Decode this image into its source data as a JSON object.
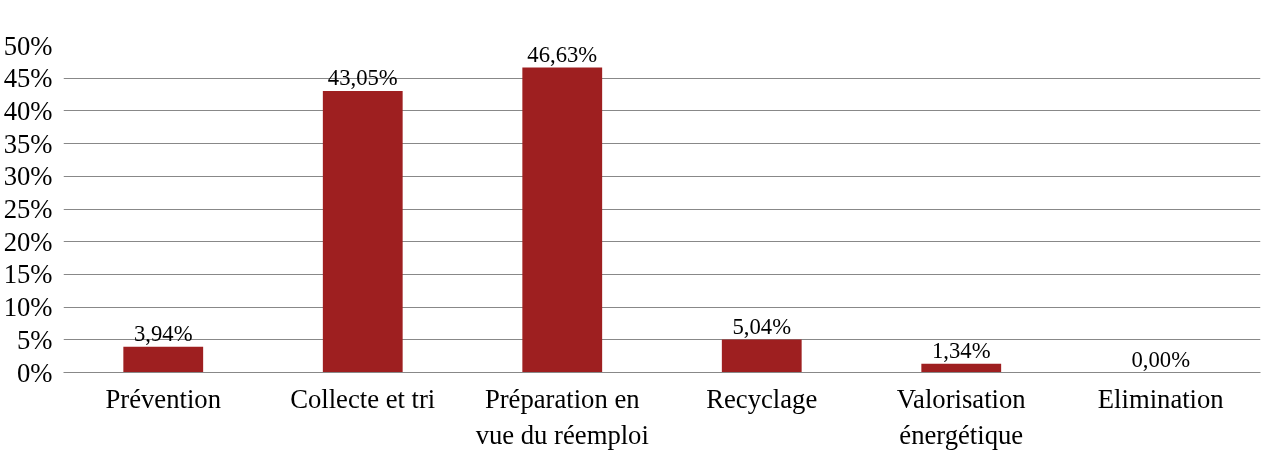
{
  "chart_data": {
    "type": "bar",
    "categories": [
      "Prévention",
      "Collecte et tri",
      "Préparation en\nvue du réemploi",
      "Recyclage",
      "Valorisation\nénergétique",
      "Elimination"
    ],
    "values": [
      3.94,
      43.05,
      46.63,
      5.04,
      1.34,
      0.0
    ],
    "value_labels": [
      "3,94%",
      "43,05%",
      "46,63%",
      "5,04%",
      "1,34%",
      "0,00%"
    ],
    "color": "#9e1f20",
    "ylim": [
      0,
      50
    ],
    "yticks": [
      {
        "value": 0,
        "label": "0%"
      },
      {
        "value": 5,
        "label": "5%"
      },
      {
        "value": 10,
        "label": "10%"
      },
      {
        "value": 15,
        "label": "15%"
      },
      {
        "value": 20,
        "label": "20%"
      },
      {
        "value": 25,
        "label": "25%"
      },
      {
        "value": 30,
        "label": "30%"
      },
      {
        "value": 35,
        "label": "35%"
      },
      {
        "value": 40,
        "label": "40%"
      },
      {
        "value": 45,
        "label": "45%"
      },
      {
        "value": 50,
        "label": "50%"
      }
    ],
    "grid": "y"
  }
}
